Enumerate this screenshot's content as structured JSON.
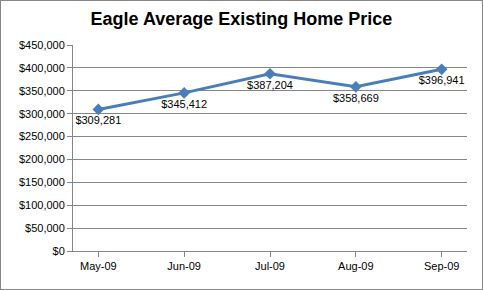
{
  "chart_data": {
    "type": "line",
    "title": "Eagle Average Existing Home Price",
    "categories": [
      "May-09",
      "Jun-09",
      "Jul-09",
      "Aug-09",
      "Sep-09"
    ],
    "values": [
      309281,
      345412,
      387204,
      358669,
      396941
    ],
    "value_labels": [
      "$309,281",
      "$345,412",
      "$387,204",
      "$358,669",
      "$396,941"
    ],
    "color": "#4a7ebb",
    "marker": "diamond",
    "data_labels": true,
    "grid": true,
    "ylim": [
      0,
      450000
    ],
    "yticks": [
      {
        "value": 0,
        "label": "$0"
      },
      {
        "value": 50000,
        "label": "$50,000"
      },
      {
        "value": 100000,
        "label": "$100,000"
      },
      {
        "value": 150000,
        "label": "$150,000"
      },
      {
        "value": 200000,
        "label": "$200,000"
      },
      {
        "value": 250000,
        "label": "$250,000"
      },
      {
        "value": 300000,
        "label": "$300,000"
      },
      {
        "value": 350000,
        "label": "$350,000"
      },
      {
        "value": 400000,
        "label": "$400,000"
      },
      {
        "value": 450000,
        "label": "$450,000"
      }
    ]
  }
}
